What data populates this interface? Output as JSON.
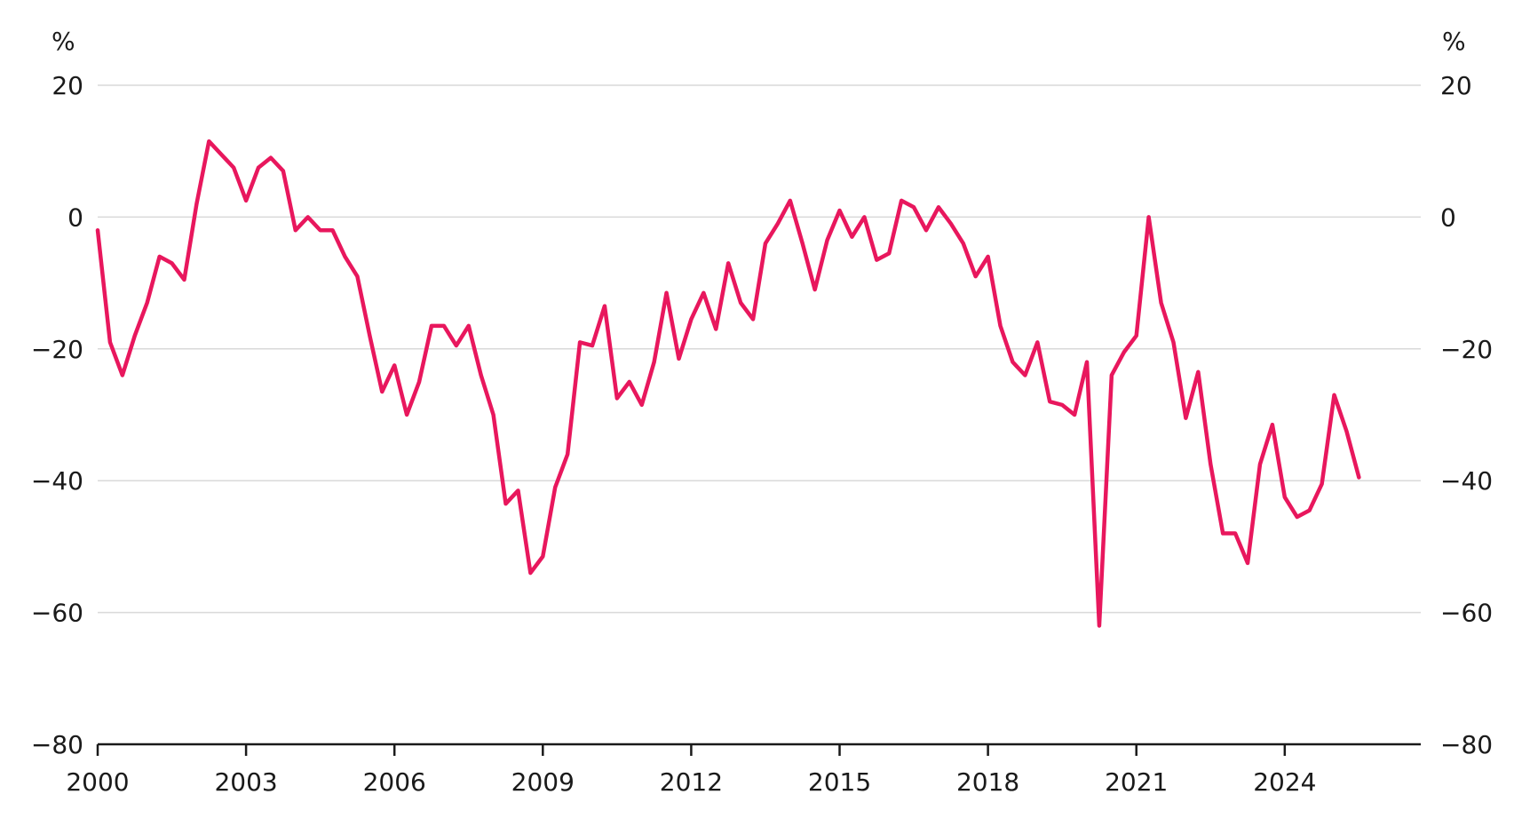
{
  "chart_data": {
    "type": "line",
    "title": "",
    "xlabel": "",
    "ylabel": "",
    "y_unit_left": "%",
    "y_unit_right": "%",
    "xlim": [
      2000,
      2026.75
    ],
    "ylim": [
      -80,
      20
    ],
    "y_ticks": [
      20,
      0,
      -20,
      -40,
      -60,
      -80
    ],
    "y_tick_labels": [
      "20",
      "0",
      "−20",
      "−40",
      "−60",
      "−80"
    ],
    "x_ticks": [
      2000,
      2003,
      2006,
      2009,
      2012,
      2015,
      2018,
      2021,
      2024
    ],
    "x_tick_labels": [
      "2000",
      "2003",
      "2006",
      "2009",
      "2012",
      "2015",
      "2018",
      "2021",
      "2024"
    ],
    "grid": true,
    "legend": "none",
    "line_color": "#e8175d",
    "series": [
      {
        "x": [
          2000.0,
          2000.25,
          2000.5,
          2000.75,
          2001.0,
          2001.25,
          2001.5,
          2001.75,
          2002.0,
          2002.25,
          2002.5,
          2002.75,
          2003.0,
          2003.25,
          2003.5,
          2003.75,
          2004.0,
          2004.25,
          2004.5,
          2004.75,
          2005.0,
          2005.25,
          2005.5,
          2005.75,
          2006.0,
          2006.25,
          2006.5,
          2006.75,
          2007.0,
          2007.25,
          2007.5,
          2007.75,
          2008.0,
          2008.25,
          2008.5,
          2008.75,
          2009.0,
          2009.25,
          2009.5,
          2009.75,
          2010.0,
          2010.25,
          2010.5,
          2010.75,
          2011.0,
          2011.25,
          2011.5,
          2011.75,
          2012.0,
          2012.25,
          2012.5,
          2012.75,
          2013.0,
          2013.25,
          2013.5,
          2013.75,
          2014.0,
          2014.25,
          2014.5,
          2014.75,
          2015.0,
          2015.25,
          2015.5,
          2015.75,
          2016.0,
          2016.25,
          2016.5,
          2016.75,
          2017.0,
          2017.25,
          2017.5,
          2017.75,
          2018.0,
          2018.25,
          2018.5,
          2018.75,
          2019.0,
          2019.25,
          2019.5,
          2019.75,
          2020.0,
          2020.25,
          2020.5,
          2020.75,
          2021.0,
          2021.25,
          2021.5,
          2021.75,
          2022.0,
          2022.25,
          2022.5,
          2022.75,
          2023.0,
          2023.25,
          2023.5,
          2023.75,
          2024.0,
          2024.25,
          2024.5,
          2024.75,
          2025.0,
          2025.25,
          2025.5
        ],
        "values": [
          -2,
          -19,
          -24,
          -18,
          -13,
          -6,
          -7,
          -9.5,
          2,
          11.5,
          9.5,
          7.5,
          2.5,
          7.5,
          9,
          7,
          -2,
          0,
          -2,
          -2,
          -6,
          -9,
          -18,
          -26.5,
          -22.5,
          -30,
          -25,
          -16.5,
          -16.5,
          -19.5,
          -16.5,
          -24,
          -30,
          -43.5,
          -41.5,
          -54,
          -51.5,
          -41,
          -36,
          -19,
          -19.5,
          -13.5,
          -27.5,
          -25,
          -28.5,
          -22,
          -11.5,
          -21.5,
          -15.5,
          -11.5,
          -17,
          -7,
          -13,
          -15.5,
          -4,
          -1,
          2.5,
          -4,
          -11,
          -3.5,
          1,
          -3,
          0,
          -6.5,
          -5.5,
          2.5,
          1.5,
          -2,
          1.5,
          -1,
          -4,
          -9,
          -6,
          -16.5,
          -22,
          -24,
          -19,
          -28,
          -28.5,
          -30,
          -22,
          -62,
          -24,
          -20.5,
          -18,
          0,
          -13,
          -19,
          -30.5,
          -23.5,
          -37.5,
          -48,
          -48,
          -52.5,
          -37.5,
          -31.5,
          -42.5,
          -45.5,
          -44.5,
          -40.5,
          -27,
          -32.5,
          -39.5
        ]
      }
    ]
  }
}
